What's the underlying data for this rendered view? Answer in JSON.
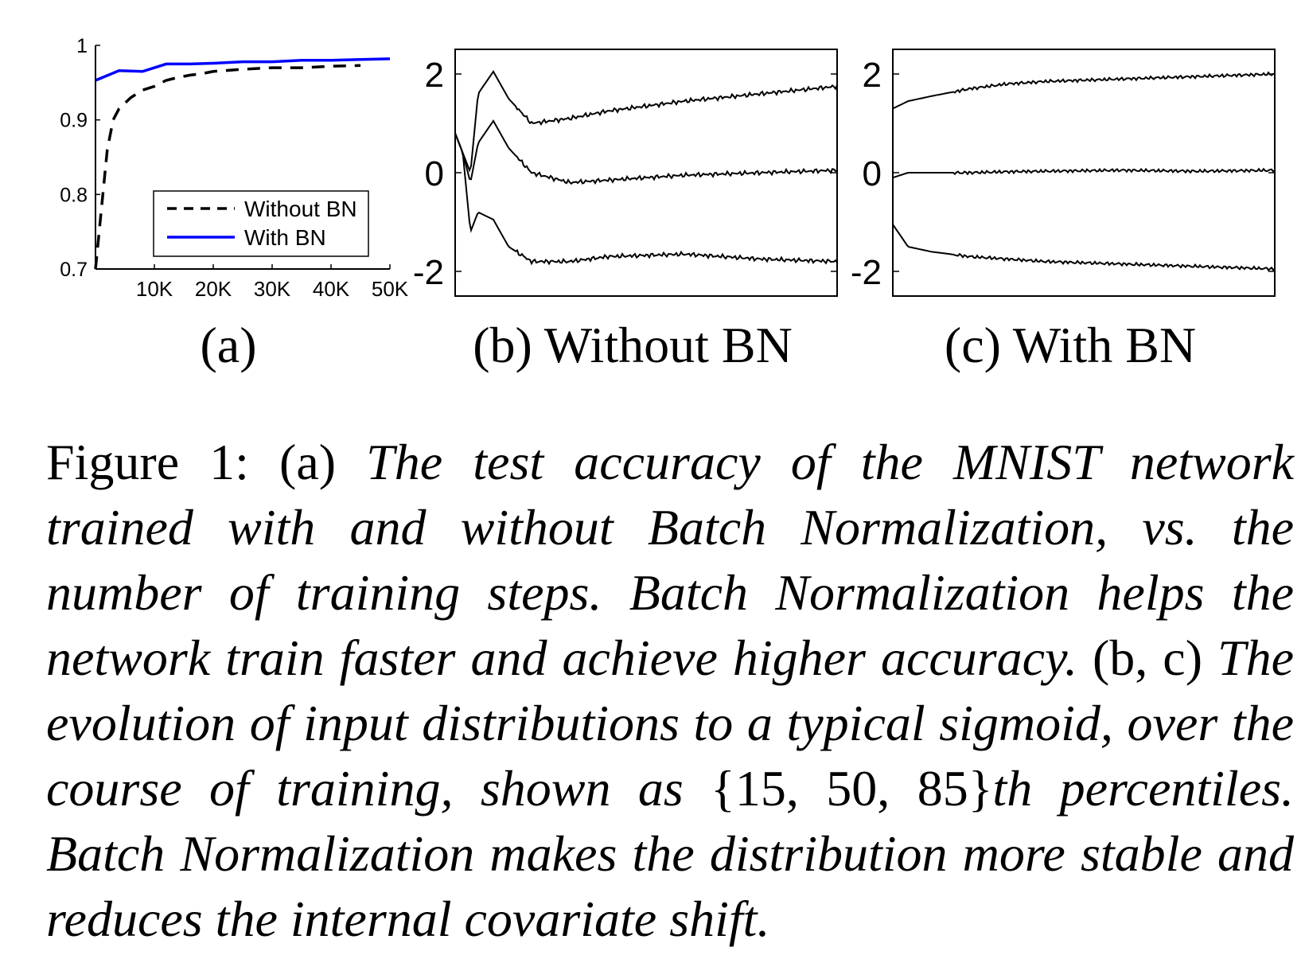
{
  "colors": {
    "without_bn": "#000000",
    "with_bn": "#0000ff",
    "axis": "#000000"
  },
  "chart_data": [
    {
      "type": "line",
      "panel_label": "(a)",
      "xlim": [
        0,
        50000
      ],
      "ylim": [
        0.7,
        1.0
      ],
      "xticks": [
        10000,
        20000,
        30000,
        40000,
        50000
      ],
      "xtick_labels": [
        "10K",
        "20K",
        "30K",
        "40K",
        "50K"
      ],
      "yticks": [
        0.7,
        0.8,
        0.9,
        1.0
      ],
      "ytick_labels": [
        "0.7",
        "0.8",
        "0.9",
        "1"
      ],
      "legend_position": "bottom-right",
      "series": [
        {
          "name": "Without BN",
          "style": "dashed",
          "x": [
            0,
            1000,
            2000,
            3000,
            4000,
            6000,
            8000,
            10000,
            12000,
            14000,
            16000,
            18000,
            20000,
            25000,
            30000,
            35000,
            40000,
            45000
          ],
          "y": [
            0.7,
            0.78,
            0.86,
            0.9,
            0.915,
            0.93,
            0.94,
            0.945,
            0.953,
            0.957,
            0.96,
            0.962,
            0.965,
            0.968,
            0.97,
            0.97,
            0.972,
            0.973
          ]
        },
        {
          "name": "With BN",
          "style": "solid",
          "x": [
            0,
            4000,
            8000,
            12000,
            16000,
            20000,
            25000,
            30000,
            35000,
            40000,
            45000,
            50000
          ],
          "y": [
            0.953,
            0.966,
            0.965,
            0.975,
            0.975,
            0.976,
            0.978,
            0.978,
            0.98,
            0.98,
            0.981,
            0.982
          ]
        }
      ]
    },
    {
      "type": "line",
      "panel_label": "(b) Without BN",
      "xlim": [
        0,
        50000
      ],
      "ylim": [
        -2.5,
        2.5
      ],
      "yticks": [
        -2,
        0,
        2
      ],
      "ytick_labels": [
        "-2",
        "0",
        "2"
      ],
      "series": [
        {
          "name": "",
          "x": [
            0,
            1000,
            2000,
            3000,
            5000,
            7000,
            10000,
            15000,
            20000,
            30000,
            40000,
            50000
          ],
          "y": [
            0.8,
            0.4,
            0.0,
            1.6,
            2.05,
            1.5,
            1.0,
            1.1,
            1.25,
            1.45,
            1.6,
            1.75
          ]
        },
        {
          "name": "",
          "x": [
            0,
            1000,
            2000,
            3000,
            5000,
            7000,
            10000,
            15000,
            20000,
            30000,
            40000,
            50000
          ],
          "y": [
            0.8,
            0.4,
            -0.2,
            0.6,
            1.05,
            0.5,
            0.0,
            -0.2,
            -0.15,
            -0.05,
            0.0,
            0.05
          ]
        },
        {
          "name": "",
          "x": [
            0,
            1000,
            2000,
            3000,
            5000,
            7000,
            10000,
            15000,
            20000,
            30000,
            40000,
            50000
          ],
          "y": [
            0.8,
            0.4,
            -1.2,
            -0.8,
            -0.95,
            -1.5,
            -1.8,
            -1.8,
            -1.7,
            -1.65,
            -1.75,
            -1.8
          ]
        }
      ]
    },
    {
      "type": "line",
      "panel_label": "(c) With BN",
      "xlim": [
        0,
        50000
      ],
      "ylim": [
        -2.5,
        2.5
      ],
      "yticks": [
        -2,
        0,
        2
      ],
      "ytick_labels": [
        "-2",
        "0",
        "2"
      ],
      "series": [
        {
          "name": "",
          "x": [
            0,
            2000,
            5000,
            10000,
            15000,
            20000,
            30000,
            40000,
            50000
          ],
          "y": [
            1.3,
            1.45,
            1.55,
            1.7,
            1.8,
            1.85,
            1.9,
            1.95,
            2.0
          ]
        },
        {
          "name": "",
          "x": [
            0,
            2000,
            5000,
            10000,
            15000,
            20000,
            30000,
            40000,
            50000
          ],
          "y": [
            -0.1,
            0.0,
            0.0,
            0.0,
            0.02,
            0.03,
            0.05,
            0.03,
            0.05
          ]
        },
        {
          "name": "",
          "x": [
            0,
            2000,
            5000,
            10000,
            15000,
            20000,
            30000,
            40000,
            50000
          ],
          "y": [
            -1.05,
            -1.5,
            -1.6,
            -1.7,
            -1.75,
            -1.8,
            -1.85,
            -1.9,
            -1.95
          ]
        }
      ]
    }
  ],
  "caption": {
    "prefix": "Figure 1:  (a) ",
    "part_a": "The test accuracy of the MNIST network trained with and without Batch Normalization, vs.  the number of training steps.  Batch Normalization helps the network train faster and achieve higher accuracy.",
    "bc_label": "  (b, c) ",
    "part_bc_1": "The evolution of input distributions to a typical sigmoid, over the course of training, shown as ",
    "percentiles": "{15, 50, 85}",
    "part_bc_2": "th percentiles.  Batch Normalization makes the distribution more stable and reduces the internal covariate shift."
  }
}
